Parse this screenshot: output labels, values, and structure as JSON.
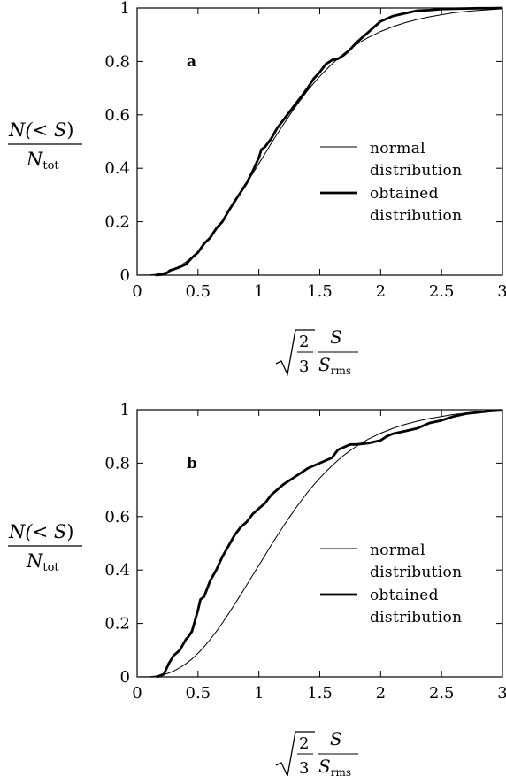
{
  "chart_data": [
    {
      "type": "line",
      "panel_label": "a",
      "x_ticks": [
        "0",
        "0.5",
        "1",
        "1.5",
        "2",
        "2.5",
        "3"
      ],
      "y_ticks": [
        "0",
        "0.2",
        "0.4",
        "0.6",
        "0.8",
        "1"
      ],
      "xlim": [
        0,
        3
      ],
      "ylim": [
        0,
        1
      ],
      "ylabel": {
        "num_left": "N(< ",
        "num_var": "S",
        "num_right": ")",
        "den": "N",
        "den_sub": "tot"
      },
      "xlabel": {
        "frac_num": "2",
        "frac_den": "3",
        "var_num": "S",
        "var_den": "S",
        "var_den_sub": "rms"
      },
      "legend_position": "center-right",
      "series": [
        {
          "name": "normal distribution",
          "legend_lines": [
            "normal",
            "distribution"
          ],
          "line_weight": "thin",
          "x": [
            0.0,
            0.1,
            0.15,
            0.2,
            0.25,
            0.3,
            0.35,
            0.4,
            0.45,
            0.5,
            0.55,
            0.6,
            0.65,
            0.7,
            0.75,
            0.8,
            0.85,
            0.9,
            0.95,
            1.0,
            1.05,
            1.1,
            1.15,
            1.2,
            1.25,
            1.3,
            1.35,
            1.4,
            1.45,
            1.5,
            1.55,
            1.6,
            1.65,
            1.7,
            1.75,
            1.8,
            1.85,
            1.9,
            1.95,
            2.0,
            2.1,
            2.2,
            2.3,
            2.4,
            2.5,
            2.6,
            2.7,
            2.8,
            3.0
          ],
          "y": [
            0.0,
            0.001,
            0.003,
            0.007,
            0.013,
            0.022,
            0.034,
            0.049,
            0.067,
            0.088,
            0.113,
            0.14,
            0.17,
            0.202,
            0.236,
            0.271,
            0.307,
            0.344,
            0.381,
            0.418,
            0.455,
            0.492,
            0.528,
            0.563,
            0.597,
            0.63,
            0.661,
            0.691,
            0.718,
            0.744,
            0.768,
            0.79,
            0.811,
            0.83,
            0.847,
            0.863,
            0.877,
            0.89,
            0.901,
            0.912,
            0.93,
            0.945,
            0.957,
            0.967,
            0.975,
            0.982,
            0.987,
            0.991,
            0.997
          ]
        },
        {
          "name": "obtained distribution",
          "legend_lines": [
            "obtained",
            "distribution"
          ],
          "line_weight": "thick",
          "x": [
            0.15,
            0.22,
            0.25,
            0.27,
            0.3,
            0.35,
            0.4,
            0.45,
            0.5,
            0.55,
            0.6,
            0.65,
            0.7,
            0.75,
            0.8,
            0.85,
            0.9,
            0.95,
            1.0,
            1.02,
            1.05,
            1.1,
            1.15,
            1.2,
            1.25,
            1.3,
            1.35,
            1.4,
            1.45,
            1.5,
            1.55,
            1.6,
            1.65,
            1.7,
            1.75,
            1.8,
            1.85,
            1.9,
            1.95,
            2.0,
            2.1,
            2.2,
            2.3,
            2.4,
            2.5,
            2.6,
            2.7,
            2.8,
            2.9,
            3.0
          ],
          "y": [
            0.0,
            0.003,
            0.01,
            0.018,
            0.022,
            0.03,
            0.04,
            0.065,
            0.085,
            0.118,
            0.14,
            0.175,
            0.2,
            0.24,
            0.275,
            0.31,
            0.345,
            0.39,
            0.44,
            0.47,
            0.48,
            0.51,
            0.55,
            0.58,
            0.61,
            0.64,
            0.67,
            0.7,
            0.735,
            0.76,
            0.79,
            0.805,
            0.81,
            0.825,
            0.845,
            0.87,
            0.89,
            0.91,
            0.93,
            0.95,
            0.97,
            0.98,
            0.99,
            0.992,
            0.996,
            0.997,
            0.998,
            0.999,
            0.999,
            1.0
          ]
        }
      ]
    },
    {
      "type": "line",
      "panel_label": "b",
      "x_ticks": [
        "0",
        "0.5",
        "1",
        "1.5",
        "2",
        "2.5",
        "3"
      ],
      "y_ticks": [
        "0",
        "0.2",
        "0.4",
        "0.6",
        "0.8",
        "1"
      ],
      "xlim": [
        0,
        3
      ],
      "ylim": [
        0,
        1
      ],
      "ylabel": {
        "num_left": "N(< ",
        "num_var": "S",
        "num_right": ")",
        "den": "N",
        "den_sub": "tot"
      },
      "xlabel": {
        "frac_num": "2",
        "frac_den": "3",
        "var_num": "S",
        "var_den": "S",
        "var_den_sub": "rms"
      },
      "legend_position": "center-right",
      "series": [
        {
          "name": "normal distribution",
          "legend_lines": [
            "normal",
            "distribution"
          ],
          "line_weight": "thin",
          "x": [
            0.0,
            0.1,
            0.15,
            0.2,
            0.25,
            0.3,
            0.35,
            0.4,
            0.45,
            0.5,
            0.55,
            0.6,
            0.65,
            0.7,
            0.75,
            0.8,
            0.85,
            0.9,
            0.95,
            1.0,
            1.05,
            1.1,
            1.15,
            1.2,
            1.25,
            1.3,
            1.35,
            1.4,
            1.45,
            1.5,
            1.55,
            1.6,
            1.65,
            1.7,
            1.75,
            1.8,
            1.85,
            1.9,
            1.95,
            2.0,
            2.1,
            2.2,
            2.3,
            2.4,
            2.5,
            2.6,
            2.7,
            2.8,
            3.0
          ],
          "y": [
            0.0,
            0.001,
            0.003,
            0.007,
            0.013,
            0.022,
            0.034,
            0.049,
            0.067,
            0.088,
            0.113,
            0.14,
            0.17,
            0.202,
            0.236,
            0.271,
            0.307,
            0.344,
            0.381,
            0.418,
            0.455,
            0.492,
            0.528,
            0.563,
            0.597,
            0.63,
            0.661,
            0.691,
            0.718,
            0.744,
            0.768,
            0.79,
            0.811,
            0.83,
            0.847,
            0.863,
            0.877,
            0.89,
            0.901,
            0.912,
            0.93,
            0.945,
            0.957,
            0.967,
            0.975,
            0.982,
            0.987,
            0.991,
            0.997
          ]
        },
        {
          "name": "obtained distribution",
          "legend_lines": [
            "obtained",
            "distribution"
          ],
          "line_weight": "thick",
          "x": [
            0.16,
            0.22,
            0.24,
            0.26,
            0.3,
            0.35,
            0.4,
            0.42,
            0.45,
            0.5,
            0.52,
            0.55,
            0.6,
            0.65,
            0.7,
            0.75,
            0.8,
            0.85,
            0.9,
            0.95,
            1.0,
            1.05,
            1.1,
            1.15,
            1.2,
            1.3,
            1.4,
            1.5,
            1.6,
            1.65,
            1.7,
            1.75,
            1.8,
            1.9,
            2.0,
            2.05,
            2.1,
            2.2,
            2.3,
            2.4,
            2.5,
            2.6,
            2.7,
            2.8,
            2.9,
            3.0
          ],
          "y": [
            0.0,
            0.01,
            0.03,
            0.05,
            0.08,
            0.1,
            0.14,
            0.15,
            0.17,
            0.25,
            0.29,
            0.3,
            0.36,
            0.4,
            0.45,
            0.49,
            0.53,
            0.56,
            0.58,
            0.61,
            0.63,
            0.65,
            0.68,
            0.7,
            0.72,
            0.75,
            0.78,
            0.8,
            0.82,
            0.85,
            0.86,
            0.87,
            0.87,
            0.875,
            0.885,
            0.9,
            0.91,
            0.92,
            0.93,
            0.95,
            0.96,
            0.975,
            0.985,
            0.99,
            0.995,
            0.998
          ]
        }
      ]
    }
  ]
}
